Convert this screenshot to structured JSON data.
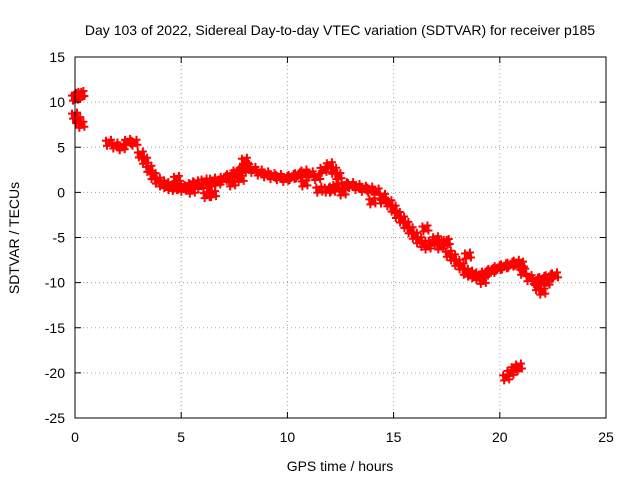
{
  "chart_data": {
    "type": "scatter",
    "title": "Day 103 of 2022, Sidereal Day-to-day VTEC variation (SDTVAR) for receiver p185",
    "xlabel": "GPS time / hours",
    "ylabel": "SDTVAR / TECUs",
    "xlim": [
      0,
      25
    ],
    "ylim": [
      -25,
      15
    ],
    "xticks": [
      0,
      5,
      10,
      15,
      20,
      25
    ],
    "yticks": [
      -25,
      -20,
      -15,
      -10,
      -5,
      0,
      5,
      10,
      15
    ],
    "grid": true,
    "marker": "+",
    "colors": {
      "series": "#ff0000",
      "grid": "#a0a0a0",
      "axis": "#000000"
    },
    "series": [
      {
        "name": "SDTVAR",
        "x": [
          0.0,
          0.15,
          0.3,
          0.0,
          0.1,
          0.2,
          0.3,
          1.6,
          1.9,
          2.2,
          2.5,
          2.8,
          3.1,
          3.3,
          3.5,
          3.7,
          3.9,
          4.1,
          4.3,
          4.5,
          4.7,
          4.9,
          5.1,
          5.3,
          5.5,
          5.7,
          5.9,
          6.1,
          6.3,
          6.5,
          6.7,
          7.0,
          7.3,
          7.6,
          7.9,
          8.1,
          8.4,
          8.7,
          9.0,
          9.3,
          9.6,
          9.9,
          10.2,
          10.5,
          10.8,
          11.1,
          11.4,
          11.7,
          12.0,
          12.2,
          12.4,
          11.5,
          11.9,
          12.3,
          12.7,
          13.0,
          13.3,
          13.6,
          13.9,
          14.2,
          14.5,
          14.8,
          15.0,
          15.2,
          15.4,
          15.6,
          15.8,
          16.0,
          16.2,
          16.4,
          16.6,
          16.8,
          17.0,
          17.2,
          17.4,
          17.6,
          17.8,
          18.0,
          18.2,
          18.4,
          18.6,
          18.8,
          19.0,
          19.3,
          19.6,
          19.9,
          20.2,
          20.5,
          20.8,
          21.1,
          21.4,
          21.7,
          22.0,
          22.3,
          22.6,
          20.3,
          20.5,
          20.7,
          20.9,
          21.8,
          22.0,
          4.8,
          5.5,
          6.2,
          6.5,
          7.4,
          7.8,
          8.0,
          10.8,
          12.1,
          12.6,
          14.0,
          14.5,
          16.5,
          17.5,
          18.5,
          19.2,
          21.0,
          22.2
        ],
        "y": [
          8.5,
          8.0,
          7.5,
          10.5,
          10.6,
          10.8,
          10.9,
          5.5,
          5.2,
          5.0,
          5.6,
          5.5,
          4.2,
          3.5,
          2.6,
          1.8,
          1.3,
          1.0,
          0.8,
          0.6,
          0.5,
          0.6,
          0.4,
          0.6,
          0.8,
          1.0,
          0.7,
          1.2,
          0.9,
          1.3,
          1.1,
          1.5,
          1.8,
          2.2,
          2.5,
          2.8,
          2.5,
          2.2,
          2.0,
          1.8,
          1.7,
          1.5,
          1.7,
          1.9,
          2.2,
          2.0,
          1.7,
          2.5,
          3.0,
          2.4,
          1.8,
          0.3,
          0.3,
          0.6,
          0.8,
          0.8,
          0.6,
          0.4,
          0.3,
          0.1,
          -0.5,
          -1.2,
          -1.8,
          -2.5,
          -3.0,
          -3.6,
          -4.2,
          -4.8,
          -5.3,
          -5.7,
          -6.0,
          -5.6,
          -5.2,
          -6.0,
          -5.6,
          -6.8,
          -7.2,
          -7.8,
          -8.2,
          -8.8,
          -9.0,
          -9.2,
          -9.4,
          -9.0,
          -8.7,
          -8.4,
          -8.2,
          -8.0,
          -7.8,
          -8.8,
          -9.5,
          -9.8,
          -9.6,
          -9.4,
          -9.2,
          -20.5,
          -20.0,
          -19.6,
          -19.3,
          -10.5,
          -11.0,
          1.5,
          0.2,
          -0.3,
          -0.2,
          1.0,
          1.5,
          3.5,
          1.0,
          0.3,
          0.0,
          -1.0,
          -0.9,
          -4.0,
          -5.5,
          -7.0,
          -9.8,
          -8.0,
          -10.0
        ]
      }
    ]
  }
}
